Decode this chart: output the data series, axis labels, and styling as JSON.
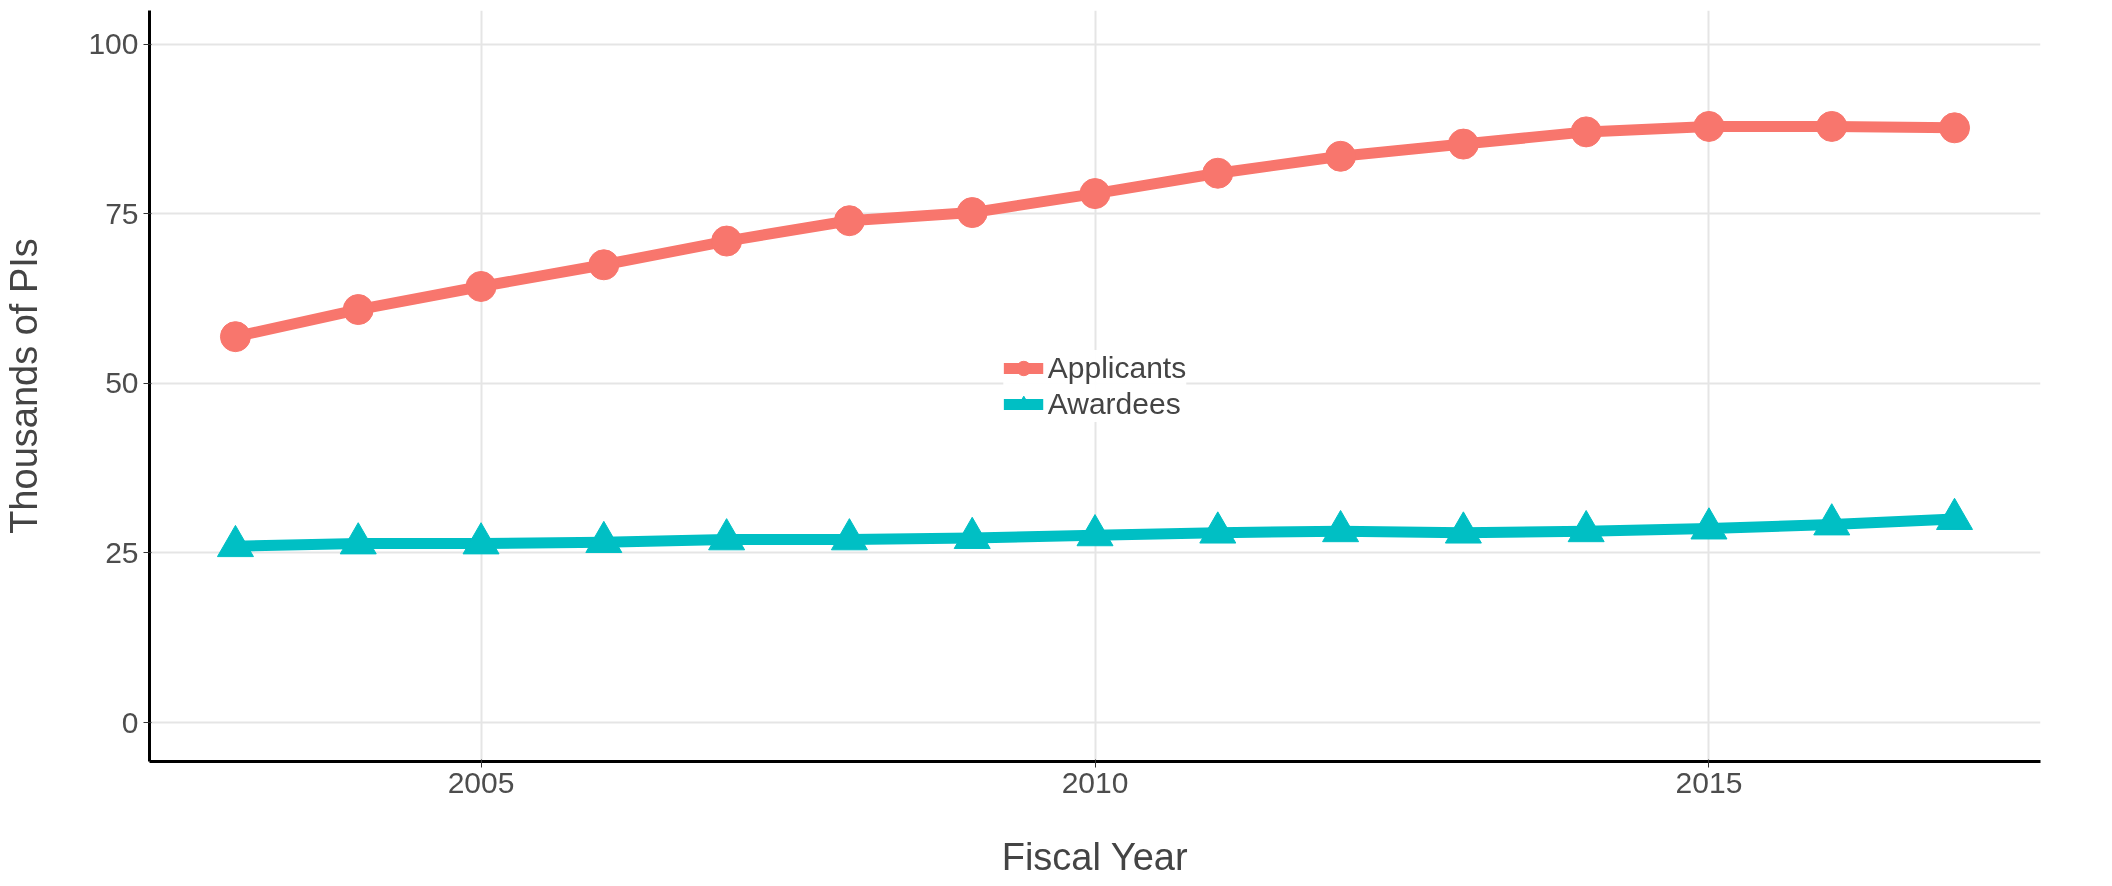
{
  "chart_data": {
    "type": "line",
    "xlabel": "Fiscal Year",
    "ylabel": "Thousands of PIs",
    "x": [
      2003,
      2004,
      2005,
      2006,
      2007,
      2008,
      2009,
      2010,
      2011,
      2012,
      2013,
      2014,
      2015,
      2016,
      2017
    ],
    "series": [
      {
        "name": "Applicants",
        "color": "#f8766d",
        "marker": "circle",
        "values": [
          56.9,
          60.9,
          64.3,
          67.5,
          71.0,
          74.0,
          75.2,
          78.0,
          81.0,
          83.5,
          85.3,
          87.1,
          87.9,
          87.9,
          87.7
        ]
      },
      {
        "name": "Awardees",
        "color": "#00bfc4",
        "marker": "triangle",
        "values": [
          26.0,
          26.4,
          26.4,
          26.6,
          27.0,
          27.0,
          27.2,
          27.6,
          28.0,
          28.2,
          28.0,
          28.2,
          28.6,
          29.2,
          30.0
        ]
      }
    ],
    "xlim": [
      2002.3,
      2017.7
    ],
    "xticks": [
      2005,
      2010,
      2015
    ],
    "ylim": [
      -5.75,
      105
    ],
    "yticks": [
      0,
      25,
      50,
      75,
      100
    ],
    "grid": true,
    "legend": "center"
  }
}
